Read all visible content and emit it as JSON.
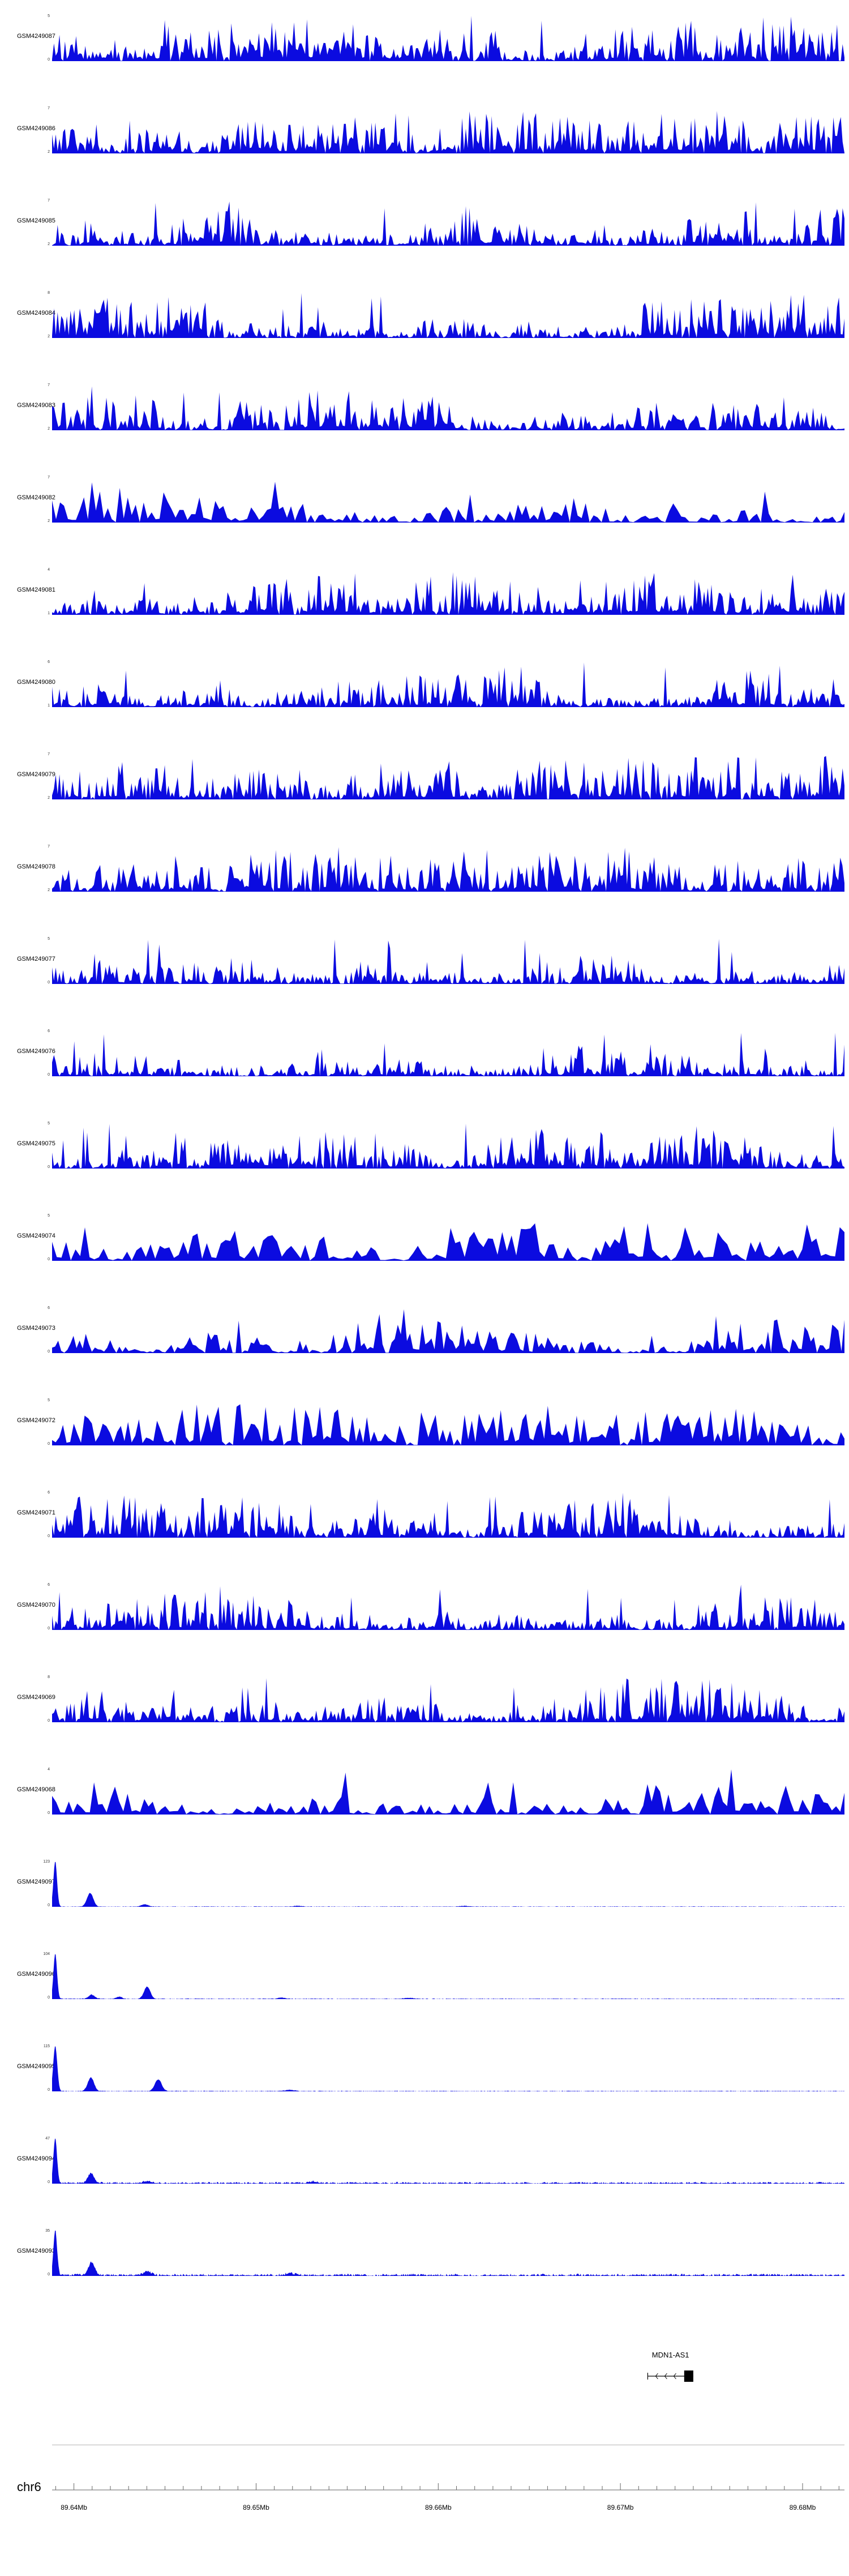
{
  "chart_data": {
    "type": "area",
    "title": "",
    "description": "Genome browser coverage tracks (Gviz-style) over chr6 89.64-89.68 Mb with MDN1-AS1 gene model and genome axis",
    "signal_color": "#0b0be0",
    "region": {
      "chromosome": "chr6",
      "start_mb": 89.6388,
      "end_mb": 89.6823,
      "axis_ticks_mb": [
        89.64,
        89.65,
        89.66,
        89.67,
        89.68
      ],
      "tick_label_suffix": "Mb",
      "minor_tick_step_mb": 0.001
    },
    "gene_track": {
      "name": "MDN1-AS1",
      "start_mb": 89.6715,
      "end_mb": 89.674,
      "exon_start_mb": 89.6735,
      "exon_end_mb": 89.674,
      "strand": "-"
    },
    "tracks": [
      {
        "label": "GSM4249087",
        "ymax": 5,
        "ymin": 0,
        "profile": "dense",
        "seed": 101,
        "points": 430
      },
      {
        "label": "GSM4249086",
        "ymax": 7,
        "ymin": 2,
        "profile": "dense",
        "seed": 102,
        "points": 430
      },
      {
        "label": "GSM4249085",
        "ymax": 7,
        "ymin": 2,
        "profile": "dense",
        "seed": 103,
        "points": 430
      },
      {
        "label": "GSM4249084",
        "ymax": 8,
        "ymin": 2,
        "profile": "dense",
        "seed": 104,
        "points": 430
      },
      {
        "label": "GSM4249083",
        "ymax": 7,
        "ymin": 2,
        "profile": "dense",
        "seed": 105,
        "points": 380
      },
      {
        "label": "GSM4249082",
        "ymax": 7,
        "ymin": 2,
        "profile": "dense",
        "seed": 106,
        "points": 200
      },
      {
        "label": "GSM4249081",
        "ymax": 4,
        "ymin": 1,
        "profile": "dense",
        "seed": 107,
        "points": 430
      },
      {
        "label": "GSM4249080",
        "ymax": 6,
        "ymin": 1,
        "profile": "dense",
        "seed": 108,
        "points": 430
      },
      {
        "label": "GSM4249079",
        "ymax": 7,
        "ymin": 2,
        "profile": "dense",
        "seed": 109,
        "points": 430
      },
      {
        "label": "GSM4249078",
        "ymax": 7,
        "ymin": 2,
        "profile": "dense",
        "seed": 110,
        "points": 380
      },
      {
        "label": "GSM4249077",
        "ymax": 5,
        "ymin": 0,
        "profile": "dense",
        "seed": 111,
        "points": 430
      },
      {
        "label": "GSM4249076",
        "ymax": 6,
        "ymin": 0,
        "profile": "dense",
        "seed": 112,
        "points": 430
      },
      {
        "label": "GSM4249075",
        "ymax": 5,
        "ymin": 0,
        "profile": "dense",
        "seed": 113,
        "points": 430
      },
      {
        "label": "GSM4249074",
        "ymax": 5,
        "ymin": 0,
        "profile": "dense",
        "seed": 114,
        "points": 170
      },
      {
        "label": "GSM4249073",
        "ymax": 6,
        "ymin": 0,
        "profile": "dense",
        "seed": 115,
        "points": 260
      },
      {
        "label": "GSM4249072",
        "ymax": 5,
        "ymin": 0,
        "profile": "dense",
        "seed": 116,
        "points": 220
      },
      {
        "label": "GSM4249071",
        "ymax": 6,
        "ymin": 0,
        "profile": "dense",
        "seed": 117,
        "points": 430
      },
      {
        "label": "GSM4249070",
        "ymax": 6,
        "ymin": 0,
        "profile": "dense",
        "seed": 118,
        "points": 430
      },
      {
        "label": "GSM4249069",
        "ymax": 8,
        "ymin": 0,
        "profile": "dense",
        "seed": 119,
        "points": 430
      },
      {
        "label": "GSM4249068",
        "ymax": 4,
        "ymin": 0,
        "profile": "dense",
        "seed": 120,
        "points": 190
      },
      {
        "label": "GSM4249097",
        "ymax": 123,
        "ymin": 0,
        "profile": "peaks",
        "seed": 121,
        "noise": 0.012,
        "peaks": [
          [
            0.004,
            1.0,
            0.004
          ],
          [
            0.048,
            0.3,
            0.007
          ],
          [
            0.117,
            0.05,
            0.008
          ],
          [
            0.31,
            0.018,
            0.01
          ],
          [
            0.52,
            0.015,
            0.01
          ]
        ]
      },
      {
        "label": "GSM4249096",
        "ymax": 104,
        "ymin": 0,
        "profile": "peaks",
        "seed": 122,
        "noise": 0.015,
        "peaks": [
          [
            0.004,
            1.0,
            0.004
          ],
          [
            0.05,
            0.09,
            0.007
          ],
          [
            0.085,
            0.05,
            0.006
          ],
          [
            0.12,
            0.27,
            0.007
          ],
          [
            0.29,
            0.03,
            0.008
          ],
          [
            0.45,
            0.02,
            0.01
          ]
        ]
      },
      {
        "label": "GSM4249095",
        "ymax": 115,
        "ymin": 0,
        "profile": "peaks",
        "seed": 123,
        "noise": 0.015,
        "peaks": [
          [
            0.004,
            1.0,
            0.0045
          ],
          [
            0.049,
            0.3,
            0.007
          ],
          [
            0.134,
            0.26,
            0.0075
          ],
          [
            0.3,
            0.03,
            0.01
          ]
        ]
      },
      {
        "label": "GSM4249094",
        "ymax": 47,
        "ymin": 0,
        "profile": "peaks",
        "seed": 124,
        "noise": 0.04,
        "peaks": [
          [
            0.004,
            1.0,
            0.004
          ],
          [
            0.049,
            0.21,
            0.007
          ],
          [
            0.12,
            0.05,
            0.008
          ],
          [
            0.33,
            0.035,
            0.01
          ]
        ]
      },
      {
        "label": "GSM4249093",
        "ymax": 35,
        "ymin": 0,
        "profile": "peaks",
        "seed": 125,
        "noise": 0.05,
        "peaks": [
          [
            0.004,
            1.0,
            0.004
          ],
          [
            0.05,
            0.28,
            0.007
          ],
          [
            0.12,
            0.09,
            0.008
          ],
          [
            0.3,
            0.04,
            0.01
          ]
        ]
      }
    ]
  }
}
